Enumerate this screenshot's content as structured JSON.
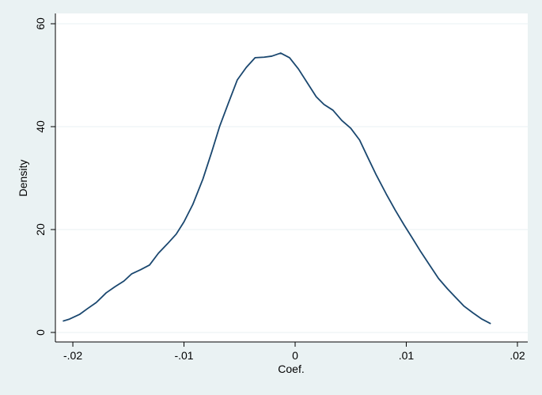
{
  "chart_data": {
    "type": "line",
    "x_label": "Coef.",
    "y_label": "Density",
    "x": [
      -0.0209,
      -0.0203,
      -0.0194,
      -0.0187,
      -0.0179,
      -0.017,
      -0.0162,
      -0.0154,
      -0.0147,
      -0.0139,
      -0.0131,
      -0.0123,
      -0.0115,
      -0.0107,
      -0.01,
      -0.0092,
      -0.0083,
      -0.0075,
      -0.0068,
      -0.006,
      -0.0052,
      -0.0044,
      -0.0036,
      -0.0028,
      -0.0021,
      -0.0013,
      -0.0005,
      0.0003,
      0.0011,
      0.0019,
      0.0026,
      0.0034,
      0.0042,
      0.005,
      0.0058,
      0.0065,
      0.0073,
      0.0082,
      0.009,
      0.0098,
      0.0105,
      0.0113,
      0.0121,
      0.0129,
      0.0137,
      0.0144,
      0.0152,
      0.016,
      0.0168,
      0.0176
    ],
    "series": [
      {
        "color": "#1a476f",
        "values": [
          2.2,
          2.6,
          3.5,
          4.6,
          5.8,
          7.7,
          8.9,
          10.0,
          11.4,
          12.2,
          13.1,
          15.4,
          17.2,
          19.1,
          21.5,
          24.9,
          29.8,
          35.1,
          40.0,
          44.6,
          49.1,
          51.5,
          53.4,
          53.5,
          53.7,
          54.3,
          53.4,
          51.2,
          48.5,
          45.8,
          44.3,
          43.2,
          41.2,
          39.7,
          37.4,
          34.2,
          30.6,
          26.9,
          23.8,
          20.9,
          18.5,
          15.7,
          13.1,
          10.5,
          8.5,
          6.9,
          5.1,
          3.8,
          2.6,
          1.7
        ]
      }
    ],
    "xlim": [
      -0.02157,
      0.02093
    ],
    "ylim": [
      -1.85,
      62.0
    ],
    "xticks": [
      {
        "value": -0.02,
        "label": "-.02"
      },
      {
        "value": -0.01,
        "label": "-.01"
      },
      0,
      {
        "value": 0.01,
        "label": ".01"
      },
      {
        "value": 0.02,
        "label": ".02"
      }
    ],
    "yticks": [
      0,
      20,
      40,
      60
    ],
    "grid": true
  }
}
